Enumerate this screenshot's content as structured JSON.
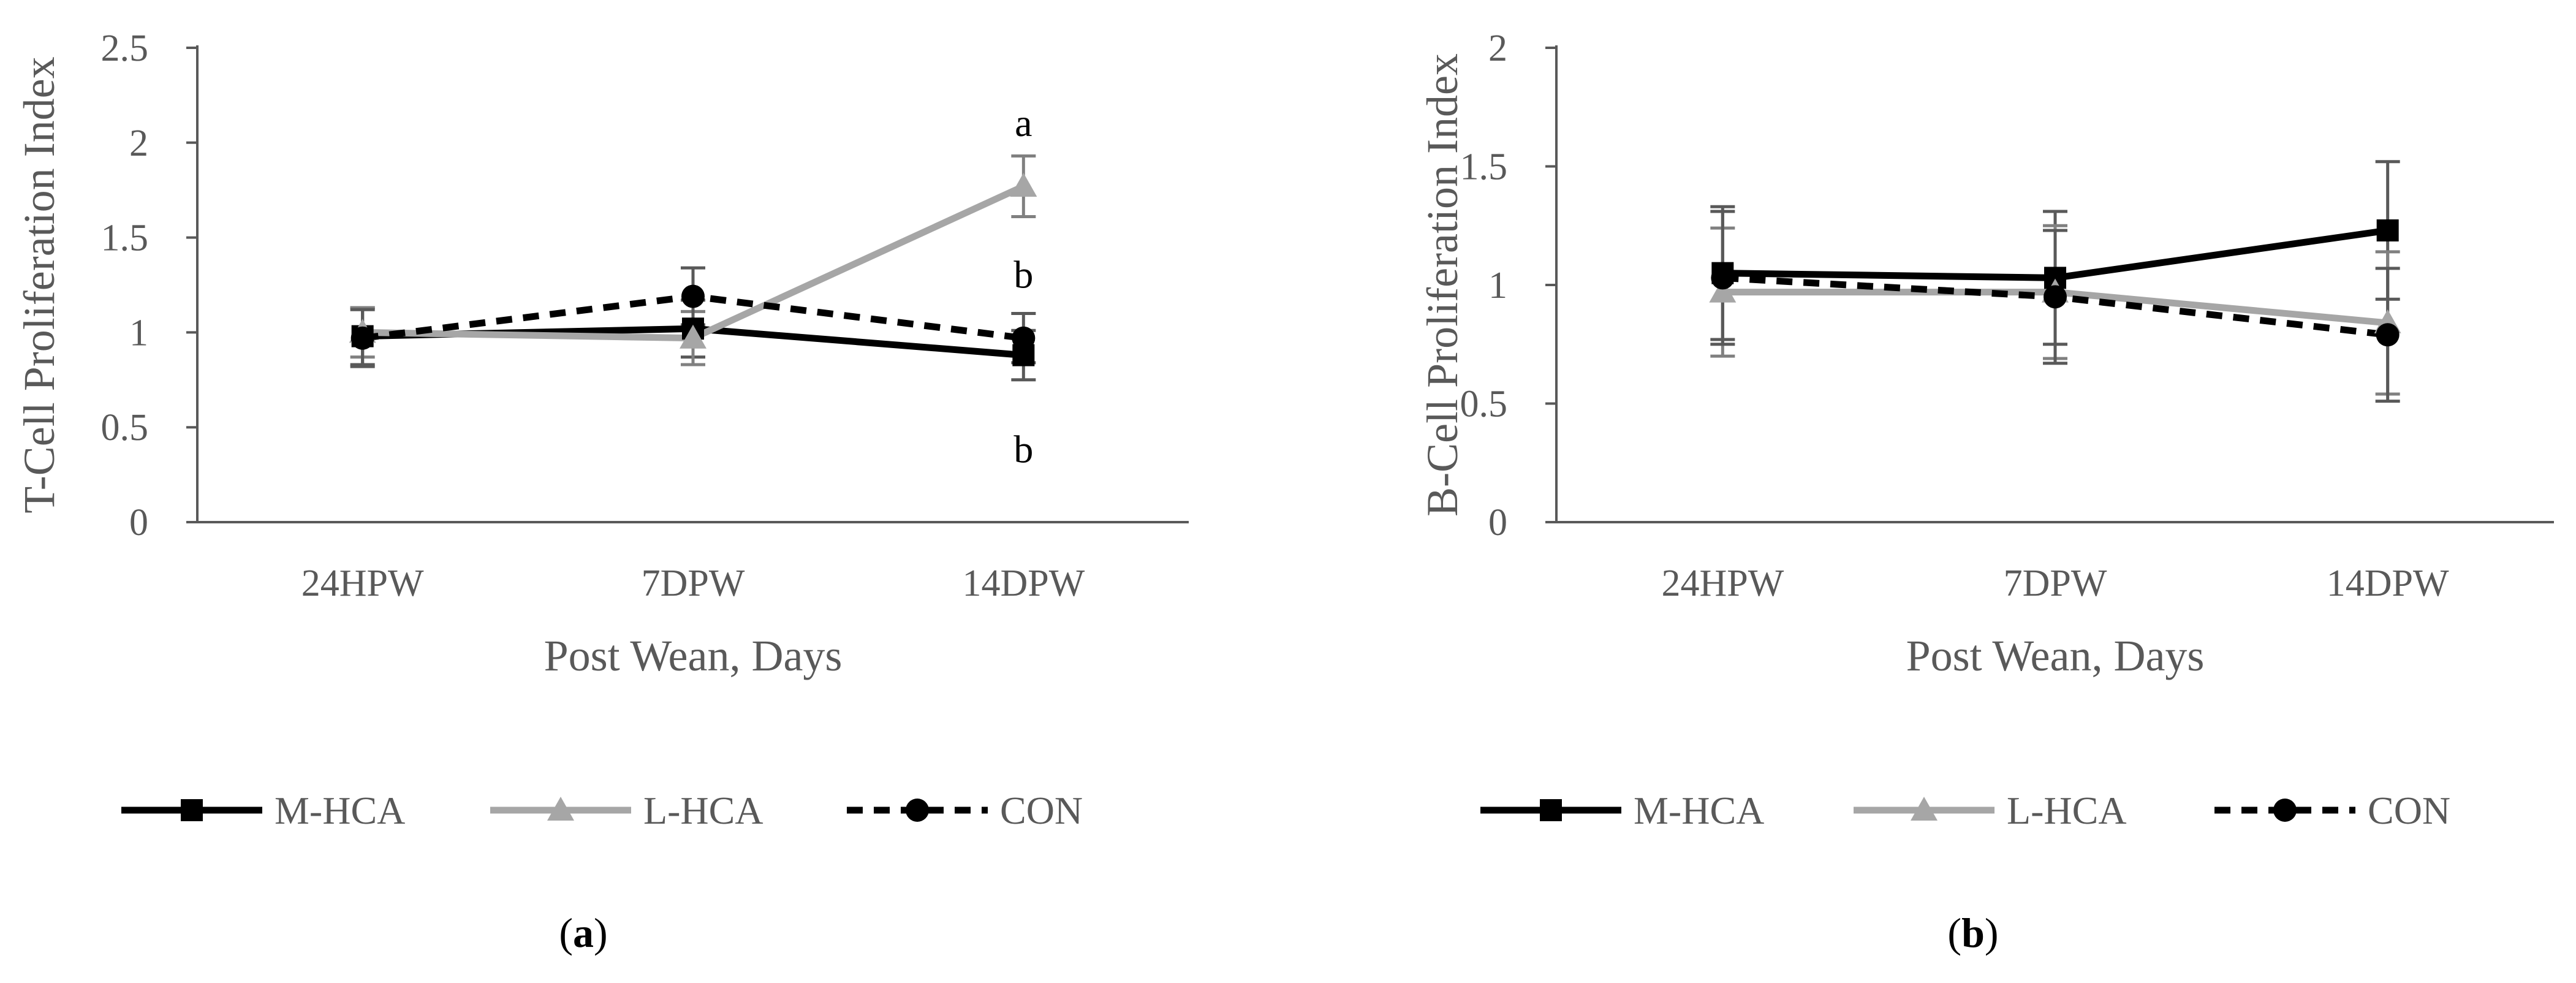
{
  "chart_data": [
    {
      "type": "line",
      "panel_label": "(a)",
      "panel_letter": "a",
      "ylabel": "T-Cell Proliferation Index",
      "xlabel": "Post Wean, Days",
      "categories": [
        "24HPW",
        "7DPW",
        "14DPW"
      ],
      "ylim": [
        0,
        2.5
      ],
      "yticks": [
        0,
        0.5,
        1,
        1.5,
        2,
        2.5
      ],
      "ytick_labels": [
        "0",
        "0.5",
        "1",
        "1.5",
        "2",
        "2.5"
      ],
      "series": [
        {
          "name": "M-HCA",
          "values": [
            0.98,
            1.02,
            0.88
          ],
          "errors": [
            0.15,
            0.15,
            0.13
          ]
        },
        {
          "name": "L-HCA",
          "values": [
            1.0,
            0.97,
            1.77
          ],
          "errors": [
            0.13,
            0.14,
            0.16
          ]
        },
        {
          "name": "CON",
          "values": [
            0.97,
            1.19,
            0.97
          ],
          "errors": [
            0.15,
            0.15,
            0.13
          ]
        }
      ],
      "annotations": [
        {
          "text": "a",
          "category": "14DPW",
          "value": 2.1
        },
        {
          "text": "b",
          "category": "14DPW",
          "value": 1.3
        },
        {
          "text": "b",
          "category": "14DPW",
          "value": 0.38
        }
      ]
    },
    {
      "type": "line",
      "panel_label": "(b)",
      "panel_letter": "b",
      "ylabel": "B-Cell Proliferation Index",
      "xlabel": "Post Wean, Days",
      "categories": [
        "24HPW",
        "7DPW",
        "14DPW"
      ],
      "ylim": [
        0,
        2
      ],
      "yticks": [
        0,
        0.5,
        1,
        1.5,
        2
      ],
      "ytick_labels": [
        "0",
        "0.5",
        "1",
        "1.5",
        "2"
      ],
      "series": [
        {
          "name": "M-HCA",
          "values": [
            1.05,
            1.03,
            1.23
          ],
          "errors": [
            0.28,
            0.28,
            0.29
          ]
        },
        {
          "name": "L-HCA",
          "values": [
            0.97,
            0.97,
            0.84
          ],
          "errors": [
            0.27,
            0.28,
            0.3
          ]
        },
        {
          "name": "CON",
          "values": [
            1.03,
            0.95,
            0.79
          ],
          "errors": [
            0.28,
            0.28,
            0.28
          ]
        }
      ],
      "annotations": []
    }
  ],
  "legend": [
    {
      "name": "M-HCA",
      "color": "#000000",
      "marker": "square",
      "dash": "solid"
    },
    {
      "name": "L-HCA",
      "color": "#A6A6A6",
      "marker": "triangle",
      "dash": "solid"
    },
    {
      "name": "CON",
      "color": "#000000",
      "marker": "circle",
      "dash": "dashed"
    }
  ],
  "colors": {
    "axis": "#595959",
    "m_hca": "#000000",
    "l_hca": "#A6A6A6",
    "con": "#000000"
  }
}
